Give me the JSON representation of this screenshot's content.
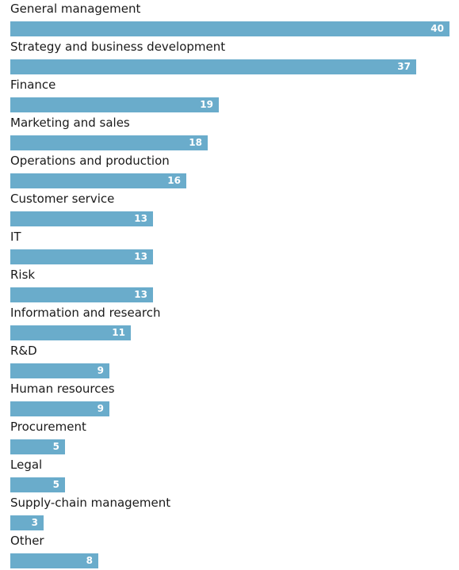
{
  "chart_data": {
    "type": "bar",
    "orientation": "horizontal",
    "title": "",
    "xlabel": "",
    "ylabel": "",
    "xlim": [
      0,
      40
    ],
    "grid": false,
    "legend": "none",
    "bar_color": "#6aaccb",
    "categories": [
      "General management",
      "Strategy and business development",
      "Finance",
      "Marketing and sales",
      "Operations and production",
      "Customer service",
      "IT",
      "Risk",
      "Information and research",
      "R&D",
      "Human resources",
      "Procurement",
      "Legal",
      "Supply-chain management",
      "Other"
    ],
    "values": [
      40,
      37,
      19,
      18,
      16,
      13,
      13,
      13,
      11,
      9,
      9,
      5,
      5,
      3,
      8
    ]
  }
}
